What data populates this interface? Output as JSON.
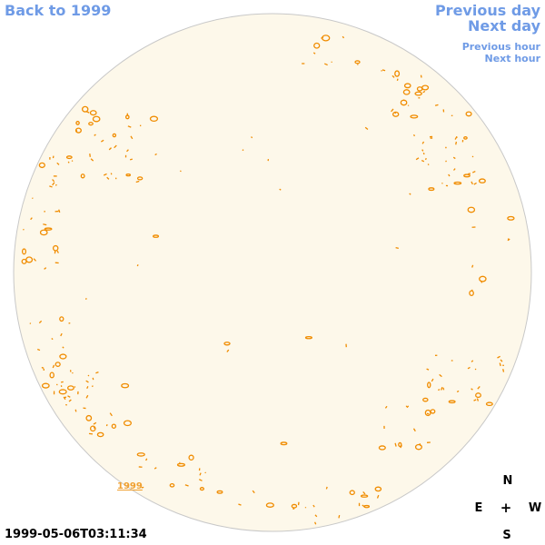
{
  "nav": {
    "back": "Back to 1999",
    "previous_day": "Previous day",
    "next_day": "Next day",
    "previous_hour": "Previous hour",
    "next_hour": "Next hour"
  },
  "compass": {
    "north": "N",
    "east": "E",
    "center": "+",
    "west": "W",
    "south": "S"
  },
  "timestamp": "1999-05-06T03:11:34",
  "year_label": "1999",
  "colors": {
    "link": "#6f9be6",
    "disk_fill": "#fdf8ea",
    "disk_border": "#c8c8c8",
    "contour": "#f08c00",
    "year_link": "#f0a030"
  }
}
